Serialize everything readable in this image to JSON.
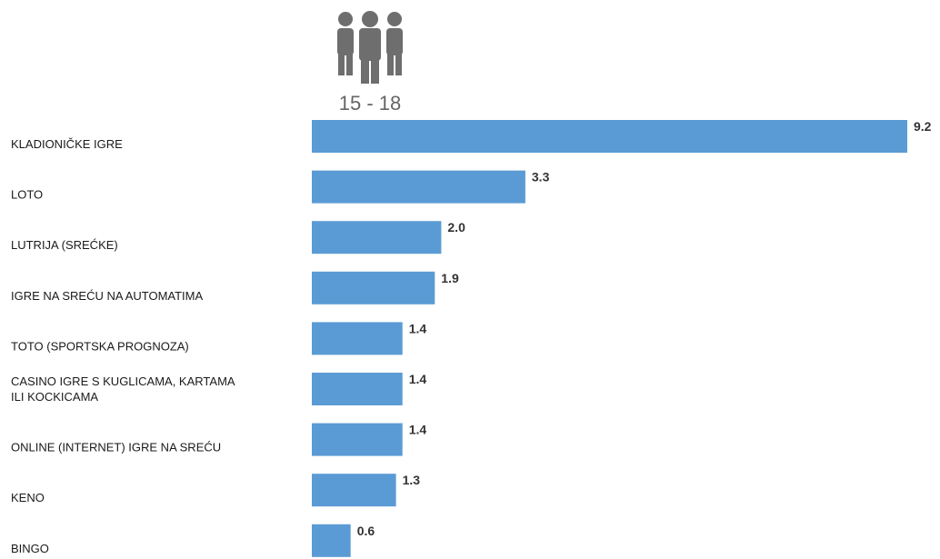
{
  "chart_data": {
    "type": "bar",
    "orientation": "horizontal",
    "group_label": "15 - 18",
    "group_icon": "people-group-icon",
    "categories": [
      [
        "KLADIONIČKE IGRE"
      ],
      [
        "LOTO"
      ],
      [
        "LUTRIJA (SREĆKE)"
      ],
      [
        "IGRE NA SREĆU NA AUTOMATIMA"
      ],
      [
        "TOTO (SPORTSKA PROGNOZA)"
      ],
      [
        "CASINO IGRE S KUGLICAMA, KARTAMA",
        "ILI KOCKICAMA"
      ],
      [
        "ONLINE (INTERNET) IGRE NA SREĆU"
      ],
      [
        "KENO"
      ],
      [
        "BINGO"
      ]
    ],
    "values": [
      9.2,
      3.3,
      2.0,
      1.9,
      1.4,
      1.4,
      1.4,
      1.3,
      0.6
    ],
    "value_labels": [
      "9.2",
      "3.3",
      "2.0",
      "1.9",
      "1.4",
      "1.4",
      "1.4",
      "1.3",
      "0.6"
    ],
    "xlim": [
      0,
      9.2
    ],
    "grid": false,
    "legend": "none",
    "colors": {
      "bar": "#5b9bd5",
      "icon": "#6e6e6e",
      "group_label": "#666666",
      "category_text": "#1a1a1a",
      "value_text": "#333333"
    }
  }
}
